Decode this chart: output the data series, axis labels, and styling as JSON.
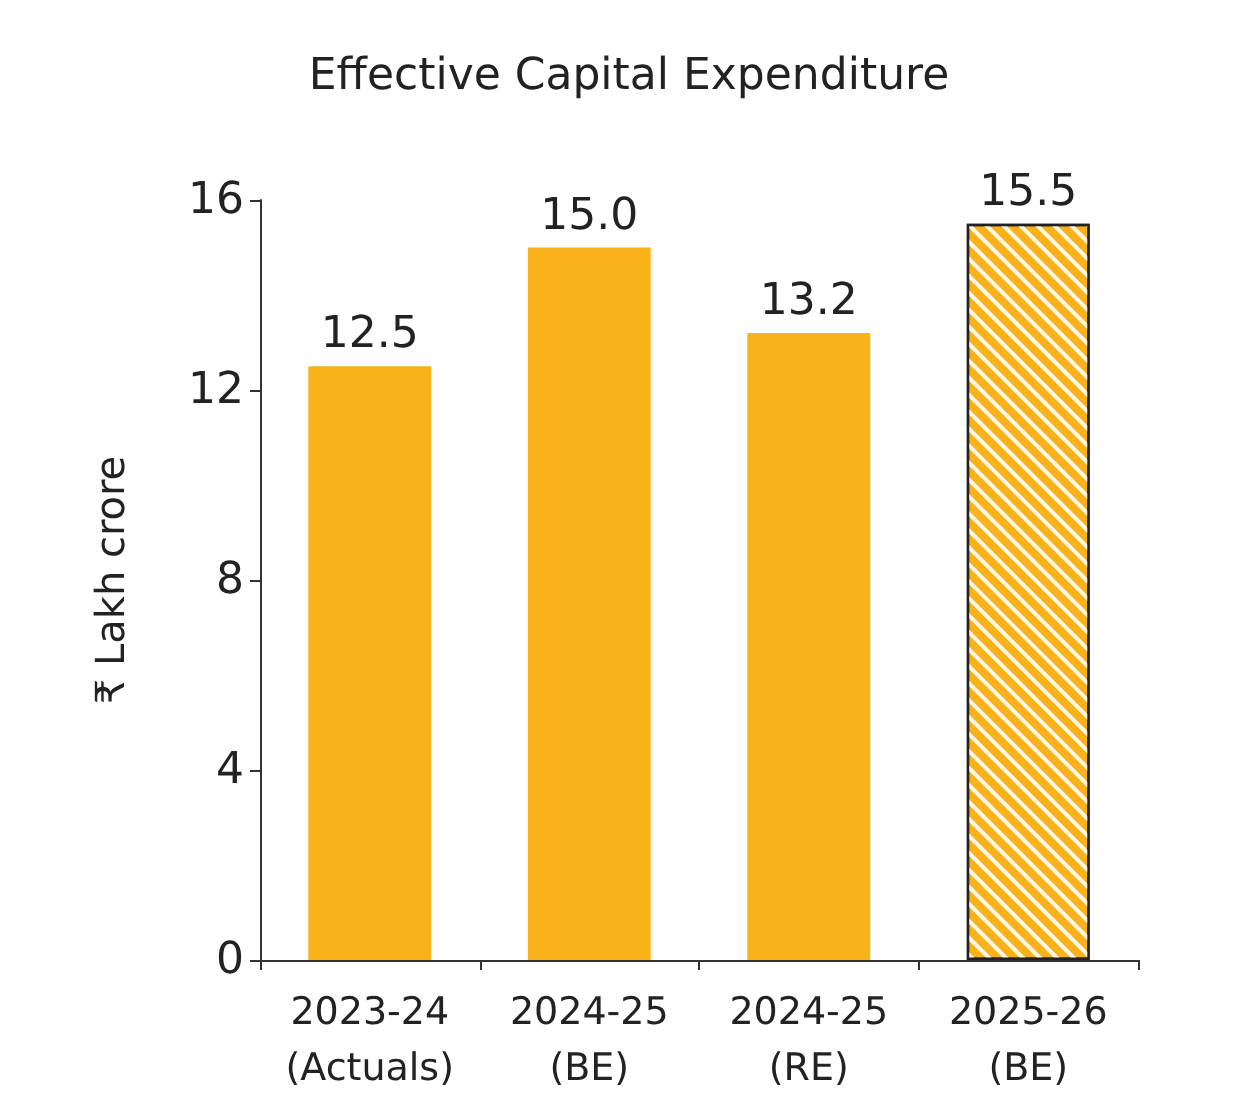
{
  "chart_data": {
    "type": "bar",
    "title": "Effective Capital Expenditure",
    "ylabel": "₹ Lakh crore",
    "categories": [
      "2023-24\n(Actuals)",
      "2024-25\n(BE)",
      "2024-25\n(RE)",
      "2025-26\n(BE)"
    ],
    "values": [
      12.5,
      15.0,
      13.2,
      15.5
    ],
    "value_labels": [
      "12.5",
      "15.0",
      "13.2",
      "15.5"
    ],
    "color": "#f9b219",
    "ylim": [
      0,
      16
    ],
    "yticks": [
      0,
      4,
      8,
      12,
      16
    ],
    "grid": false
  }
}
